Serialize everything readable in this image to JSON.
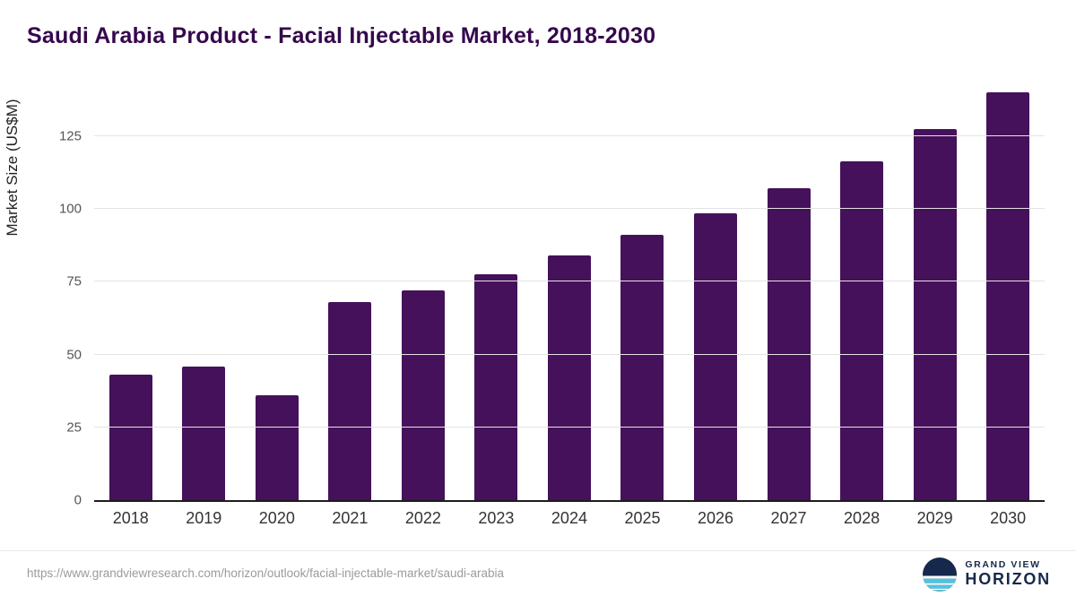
{
  "title": "Saudi Arabia Product - Facial Injectable Market, 2018-2030",
  "source_url": "https://www.grandviewresearch.com/horizon/outlook/facial-injectable-market/saudi-arabia",
  "logo": {
    "line1": "GRAND VIEW",
    "line2": "HORIZON"
  },
  "colors": {
    "bar": "#44115a",
    "title": "#35084d",
    "logo_navy": "#16294c",
    "logo_blue": "#4fc4e1"
  },
  "chart_data": {
    "type": "bar",
    "title": "Saudi Arabia Product - Facial Injectable Market, 2018-2030",
    "categories": [
      "2018",
      "2019",
      "2020",
      "2021",
      "2022",
      "2023",
      "2024",
      "2025",
      "2026",
      "2027",
      "2028",
      "2029",
      "2030"
    ],
    "values": [
      43,
      46,
      36,
      68,
      72,
      77.5,
      84,
      91,
      98.5,
      107,
      116.5,
      127.5,
      140
    ],
    "xlabel": "",
    "ylabel": "Market Size (US$M)",
    "yticks": [
      0,
      25,
      50,
      75,
      100,
      125
    ],
    "ylim": [
      0,
      141
    ],
    "grid": true,
    "legend": false,
    "bar_color": "#44115a"
  }
}
